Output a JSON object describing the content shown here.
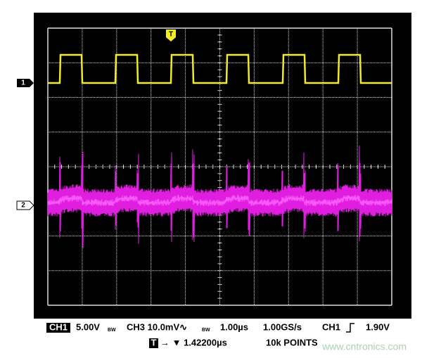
{
  "markers": {
    "trigger": "T",
    "ch1": "1",
    "ch2": "2"
  },
  "status": {
    "row1": {
      "ch1_badge": "CH1",
      "ch1_scale": "5.00V",
      "ch1_bw": "BW",
      "ch3_scale": "CH3 10.0mV∿",
      "ch3_bw": "BW",
      "timebase": "1.00µs",
      "sample_rate": "1.00GS/s",
      "trigger_source": "CH1",
      "trigger_level": "1.90V"
    },
    "row2": {
      "trigger_badge": "T",
      "trigger_position": "→ ▼ 1.42200µs",
      "record_length": "10k POINTS"
    }
  },
  "watermark": "www.cntronics.com"
}
